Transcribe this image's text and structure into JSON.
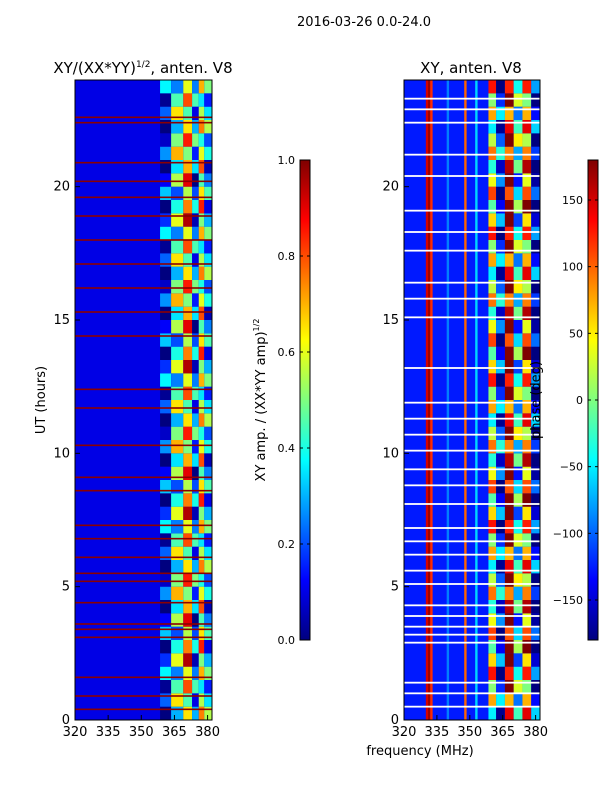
{
  "figure": {
    "suptitle": "2016-03-26 0.0-24.0",
    "shared_xlabel": "frequency (MHz)"
  },
  "colors": {
    "jet_stops": [
      "#00007f",
      "#0000ff",
      "#007fff",
      "#00ffff",
      "#7fff7f",
      "#ffff00",
      "#ff7f00",
      "#ff0000",
      "#7f0000"
    ],
    "frame": "#000000",
    "flag_line_left": "#8b0000",
    "flag_line_right": "#ffffff"
  },
  "chart_data": [
    {
      "type": "heatmap",
      "id": "left",
      "title_main": "XY/(XX*YY)",
      "title_sup": "1/2",
      "title_tail": ", anten. V8",
      "xlabel": "",
      "ylabel": "UT (hours)",
      "x_range": [
        320,
        382
      ],
      "y_range": [
        0,
        24
      ],
      "x_ticks": [
        320,
        335,
        350,
        365,
        380
      ],
      "y_ticks": [
        0,
        5,
        10,
        15,
        20
      ],
      "quantity": "normalized XY amplitude",
      "value_range": [
        0.0,
        1.0
      ],
      "band_edges_mhz": [
        358.5,
        363.5,
        369,
        373,
        376,
        378.5,
        382
      ],
      "band_values": [
        0.12,
        0.45,
        0.7,
        0.25,
        0.6,
        0.3
      ],
      "flagged_hours": [
        0.4,
        0.9,
        1.6,
        3.1,
        3.4,
        3.6,
        4.4,
        5.2,
        5.5,
        6.1,
        6.8,
        7.3,
        8.6,
        9.1,
        10.3,
        11.7,
        12.4,
        14.4,
        15.3,
        16.2,
        17.1,
        18.0,
        18.9,
        19.6,
        20.2,
        20.9,
        22.4,
        22.6
      ],
      "colorbar": {
        "label_main": "XY amp. / (XX*YY amp)",
        "label_sup": "1/2",
        "range": [
          0.0,
          1.0
        ],
        "ticks": [
          0.0,
          0.2,
          0.4,
          0.6,
          0.8,
          1.0
        ],
        "tick_labels": [
          "0.0",
          "0.2",
          "0.4",
          "0.6",
          "0.8",
          "1.0"
        ]
      }
    },
    {
      "type": "heatmap",
      "id": "right",
      "title": "XY, anten. V8",
      "xlabel": "",
      "ylabel": "",
      "x_range": [
        320,
        382
      ],
      "y_range": [
        0,
        24
      ],
      "x_ticks": [
        320,
        335,
        350,
        365,
        380
      ],
      "y_ticks": [
        0,
        5,
        10,
        15,
        20
      ],
      "quantity": "XY phase",
      "value_range": [
        -180,
        180
      ],
      "stripe_mhz": [
        330.5,
        331.5,
        332.5,
        340,
        348,
        353
      ],
      "stripe_values": [
        150,
        170,
        120,
        -90,
        100,
        -60
      ],
      "band_edges_mhz": [
        358.5,
        362,
        366,
        370,
        374,
        378,
        382
      ],
      "band_values": [
        40,
        -120,
        160,
        -40,
        90,
        -150
      ],
      "flagged_hours": [
        0.5,
        1.0,
        1.4,
        2.9,
        3.2,
        3.5,
        3.9,
        4.3,
        5.1,
        5.6,
        6.2,
        6.7,
        7.2,
        8.1,
        8.8,
        9.4,
        10.1,
        10.7,
        11.3,
        11.9,
        13.2,
        15.1,
        15.8,
        16.4,
        17.6,
        18.3,
        19.1,
        20.4,
        21.2,
        22.4,
        22.9,
        23.3
      ],
      "colorbar": {
        "label": "phase (deg)",
        "range": [
          -180,
          180
        ],
        "ticks": [
          -150,
          -100,
          -50,
          0,
          50,
          100,
          150
        ],
        "tick_labels": [
          "−150",
          "−100",
          "−50",
          "0",
          "50",
          "100",
          "150"
        ]
      }
    }
  ]
}
